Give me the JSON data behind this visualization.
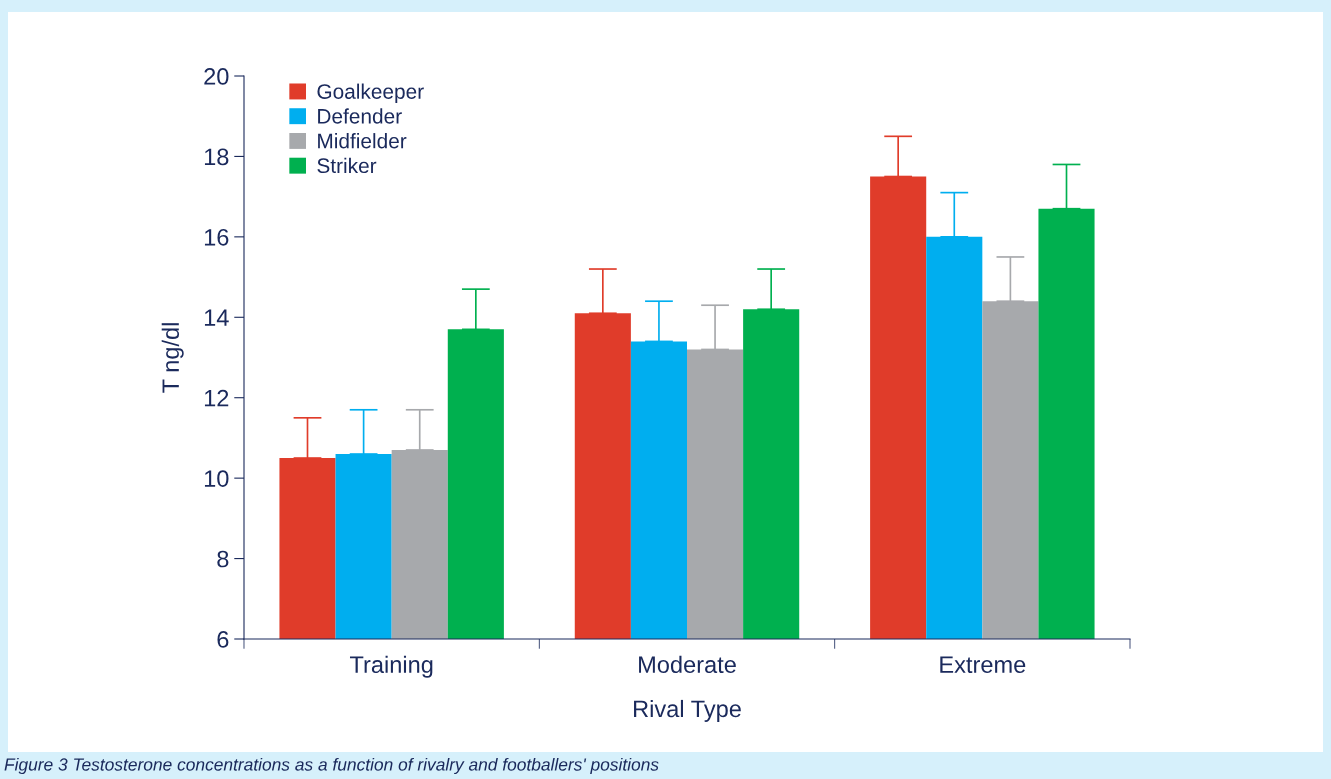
{
  "chart_data": {
    "type": "bar",
    "xlabel": "Rival Type",
    "ylabel": "T ng/dl",
    "categories": [
      "Training",
      "Moderate",
      "Extreme"
    ],
    "series": [
      {
        "name": "Goalkeeper",
        "color": "#e03c2a",
        "values": [
          10.5,
          14.1,
          17.5
        ],
        "errors": [
          [
            10.5,
            11.5
          ],
          [
            14.1,
            15.2
          ],
          [
            17.5,
            18.5
          ]
        ]
      },
      {
        "name": "Defender",
        "color": "#00aeef",
        "values": [
          10.6,
          13.4,
          16.0
        ],
        "errors": [
          [
            10.6,
            11.7
          ],
          [
            13.4,
            14.4
          ],
          [
            16.0,
            17.1
          ]
        ]
      },
      {
        "name": "Midfielder",
        "color": "#a7a9ac",
        "values": [
          10.7,
          13.2,
          14.4
        ],
        "errors": [
          [
            10.7,
            11.7
          ],
          [
            13.2,
            14.3
          ],
          [
            14.4,
            15.5
          ]
        ]
      },
      {
        "name": "Striker",
        "color": "#00b04f",
        "values": [
          13.7,
          14.2,
          16.7
        ],
        "errors": [
          [
            13.7,
            14.7
          ],
          [
            14.2,
            15.2
          ],
          [
            16.7,
            17.8
          ]
        ]
      }
    ],
    "ylim": [
      6,
      20
    ],
    "yticks": [
      6,
      8,
      10,
      12,
      14,
      16,
      18,
      20
    ],
    "grid": false,
    "legend": "top left",
    "annotations": [
      "Figure 3 Testosterone concentrations as a function of rivalry and footballers' positions"
    ]
  }
}
